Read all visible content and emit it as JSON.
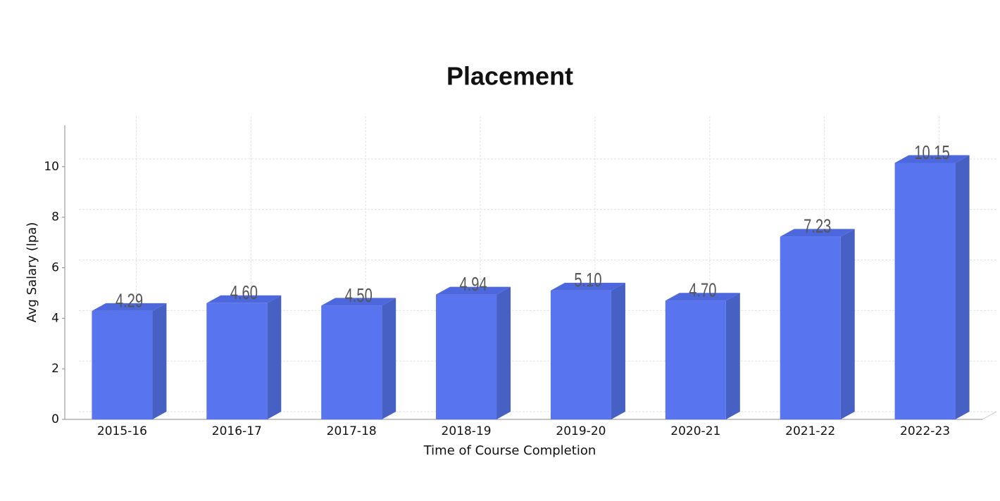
{
  "chart_data": {
    "type": "bar3d",
    "title": "Placement",
    "x_label": "Time of Course Completion",
    "y_label": "Avg Salary (lpa)",
    "categories": [
      "2015-16",
      "2016-17",
      "2017-18",
      "2018-19",
      "2019-20",
      "2020-21",
      "2021-22",
      "2022-23"
    ],
    "values": [
      4.29,
      4.6,
      4.5,
      4.94,
      5.1,
      4.7,
      7.23,
      10.15
    ],
    "value_labels": [
      "4.29",
      "4.60",
      "4.50",
      "4.94",
      "5.10",
      "4.70",
      "7.23",
      "10.15"
    ],
    "color": "#5874ee",
    "ylim": [
      0,
      11.5
    ],
    "yticks": [
      0,
      2,
      4,
      6,
      8,
      10
    ],
    "grid": true
  }
}
